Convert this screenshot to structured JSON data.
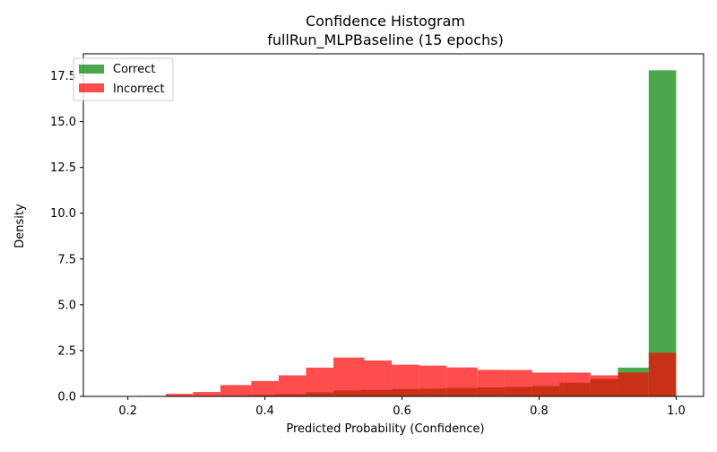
{
  "chart_data": {
    "type": "histogram",
    "title": "Confidence Histogram",
    "subtitle": "fullRun_MLPBaseline (15 epochs)",
    "xlabel": "Predicted Probability (Confidence)",
    "ylabel": "Density",
    "xlim": [
      0.135,
      1.04
    ],
    "ylim": [
      0,
      18.7
    ],
    "x_ticks": [
      0.2,
      0.4,
      0.6,
      0.8,
      1.0
    ],
    "x_tick_labels": [
      "0.2",
      "0.4",
      "0.6",
      "0.8",
      "1.0"
    ],
    "y_ticks": [
      0,
      2.5,
      5,
      7.5,
      10,
      12.5,
      15,
      17.5
    ],
    "y_tick_labels": [
      "0.0",
      "2.5",
      "5.0",
      "7.5",
      "10.0",
      "12.5",
      "15.0",
      "17.5"
    ],
    "grid": false,
    "legend_position": "top-left",
    "alpha": 0.7,
    "series": [
      {
        "name": "Correct",
        "color": "#008000",
        "bins": [
          [
            0.21,
            0.25,
            0.0
          ],
          [
            0.25,
            0.295,
            0.0
          ],
          [
            0.295,
            0.335,
            0.02
          ],
          [
            0.335,
            0.375,
            0.04
          ],
          [
            0.375,
            0.415,
            0.08
          ],
          [
            0.415,
            0.46,
            0.12
          ],
          [
            0.46,
            0.5,
            0.22
          ],
          [
            0.5,
            0.54,
            0.33
          ],
          [
            0.54,
            0.585,
            0.36
          ],
          [
            0.585,
            0.625,
            0.4
          ],
          [
            0.625,
            0.665,
            0.42
          ],
          [
            0.665,
            0.71,
            0.46
          ],
          [
            0.71,
            0.75,
            0.49
          ],
          [
            0.75,
            0.79,
            0.52
          ],
          [
            0.79,
            0.83,
            0.57
          ],
          [
            0.83,
            0.875,
            0.75
          ],
          [
            0.875,
            0.915,
            0.95
          ],
          [
            0.915,
            0.96,
            1.57
          ],
          [
            0.96,
            1.0,
            17.8
          ]
        ]
      },
      {
        "name": "Incorrect",
        "color": "#ff0000",
        "bins": [
          [
            0.215,
            0.255,
            0.03
          ],
          [
            0.255,
            0.295,
            0.14
          ],
          [
            0.295,
            0.335,
            0.24
          ],
          [
            0.335,
            0.38,
            0.62
          ],
          [
            0.38,
            0.42,
            0.84
          ],
          [
            0.42,
            0.46,
            1.15
          ],
          [
            0.46,
            0.5,
            1.57
          ],
          [
            0.5,
            0.545,
            2.12
          ],
          [
            0.545,
            0.585,
            1.96
          ],
          [
            0.585,
            0.625,
            1.73
          ],
          [
            0.625,
            0.665,
            1.68
          ],
          [
            0.665,
            0.71,
            1.58
          ],
          [
            0.71,
            0.75,
            1.45
          ],
          [
            0.75,
            0.79,
            1.44
          ],
          [
            0.79,
            0.835,
            1.3
          ],
          [
            0.835,
            0.875,
            1.3
          ],
          [
            0.875,
            0.915,
            1.15
          ],
          [
            0.915,
            0.96,
            1.3
          ],
          [
            0.96,
            1.0,
            2.38
          ]
        ]
      }
    ]
  }
}
